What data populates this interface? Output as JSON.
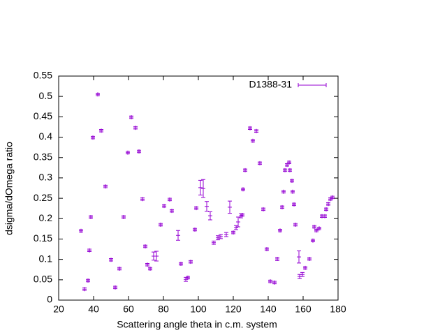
{
  "chart_data": {
    "type": "errorbar-scatter",
    "xlabel": "Scattering angle theta in c.m. system",
    "ylabel": "dsigma/dOmega ratio",
    "xlim": [
      20,
      180
    ],
    "xticks": [
      20,
      40,
      60,
      80,
      100,
      120,
      140,
      160,
      180
    ],
    "ylim": [
      0,
      0.55
    ],
    "yticks": [
      0,
      0.05,
      0.1,
      0.15,
      0.2,
      0.25,
      0.3,
      0.35,
      0.4,
      0.45,
      0.5,
      0.55
    ],
    "legend": "top-right",
    "series": [
      {
        "name": "D1388-31",
        "color": "#9400d3",
        "x": [
          32.8,
          34.8,
          36.8,
          37.6,
          38.4,
          39.6,
          42.4,
          44.4,
          46.8,
          50,
          52.4,
          54.8,
          57.2,
          59.6,
          61.6,
          64,
          66,
          68,
          69.6,
          70.8,
          72.4,
          74.4,
          76,
          78.4,
          80.4,
          83.6,
          84.8,
          88.4,
          90,
          92.8,
          94,
          95.6,
          98,
          98.8,
          101.2,
          102.8,
          104.8,
          106.8,
          108.8,
          111.2,
          112.8,
          116,
          118,
          120,
          121.6,
          122.8,
          124.4,
          125.2,
          125.6,
          126.8,
          129.6,
          131.2,
          133.2,
          135.2,
          137.2,
          139.2,
          141.2,
          143.6,
          145.2,
          146.8,
          148,
          148.8,
          149.6,
          150.8,
          152,
          152.4,
          153.6,
          154,
          154.8,
          155.6,
          157.6,
          158,
          159.6,
          161.2,
          163.6,
          165.6,
          166.4,
          167.6,
          169.2,
          170.8,
          172.4,
          173.2,
          174.4,
          175.6,
          176.8
        ],
        "values": [
          0.17,
          0.027,
          0.048,
          0.122,
          0.204,
          0.399,
          0.505,
          0.416,
          0.279,
          0.099,
          0.031,
          0.077,
          0.204,
          0.362,
          0.449,
          0.423,
          0.365,
          0.248,
          0.132,
          0.087,
          0.077,
          0.108,
          0.108,
          0.185,
          0.231,
          0.247,
          0.219,
          0.159,
          0.089,
          0.051,
          0.055,
          0.094,
          0.173,
          0.226,
          0.276,
          0.274,
          0.23,
          0.207,
          0.141,
          0.153,
          0.156,
          0.161,
          0.228,
          0.166,
          0.178,
          0.192,
          0.207,
          0.209,
          0.272,
          0.319,
          0.422,
          0.391,
          0.415,
          0.336,
          0.223,
          0.125,
          0.046,
          0.043,
          0.101,
          0.171,
          0.228,
          0.266,
          0.319,
          0.332,
          0.338,
          0.319,
          0.293,
          0.266,
          0.235,
          0.185,
          0.106,
          0.058,
          0.063,
          0.079,
          0.101,
          0.146,
          0.18,
          0.171,
          0.176,
          0.206,
          0.206,
          0.223,
          0.236,
          0.248,
          0.252
        ],
        "errors": [
          0.003,
          0.003,
          0.003,
          0.003,
          0.003,
          0.003,
          0.003,
          0.003,
          0.003,
          0.003,
          0.003,
          0.003,
          0.003,
          0.003,
          0.003,
          0.003,
          0.003,
          0.003,
          0.003,
          0.003,
          0.003,
          0.01,
          0.012,
          0.003,
          0.003,
          0.003,
          0.003,
          0.012,
          0.003,
          0.005,
          0.003,
          0.003,
          0.003,
          0.003,
          0.018,
          0.022,
          0.012,
          0.01,
          0.004,
          0.005,
          0.005,
          0.005,
          0.015,
          0.003,
          0.005,
          0.012,
          0.005,
          0.003,
          0.003,
          0.003,
          0.003,
          0.003,
          0.003,
          0.003,
          0.003,
          0.003,
          0.003,
          0.003,
          0.004,
          0.003,
          0.003,
          0.003,
          0.003,
          0.003,
          0.003,
          0.003,
          0.003,
          0.003,
          0.003,
          0.003,
          0.015,
          0.005,
          0.005,
          0.003,
          0.003,
          0.003,
          0.003,
          0.003,
          0.003,
          0.003,
          0.003,
          0.003,
          0.003,
          0.003,
          0.003
        ]
      }
    ]
  }
}
